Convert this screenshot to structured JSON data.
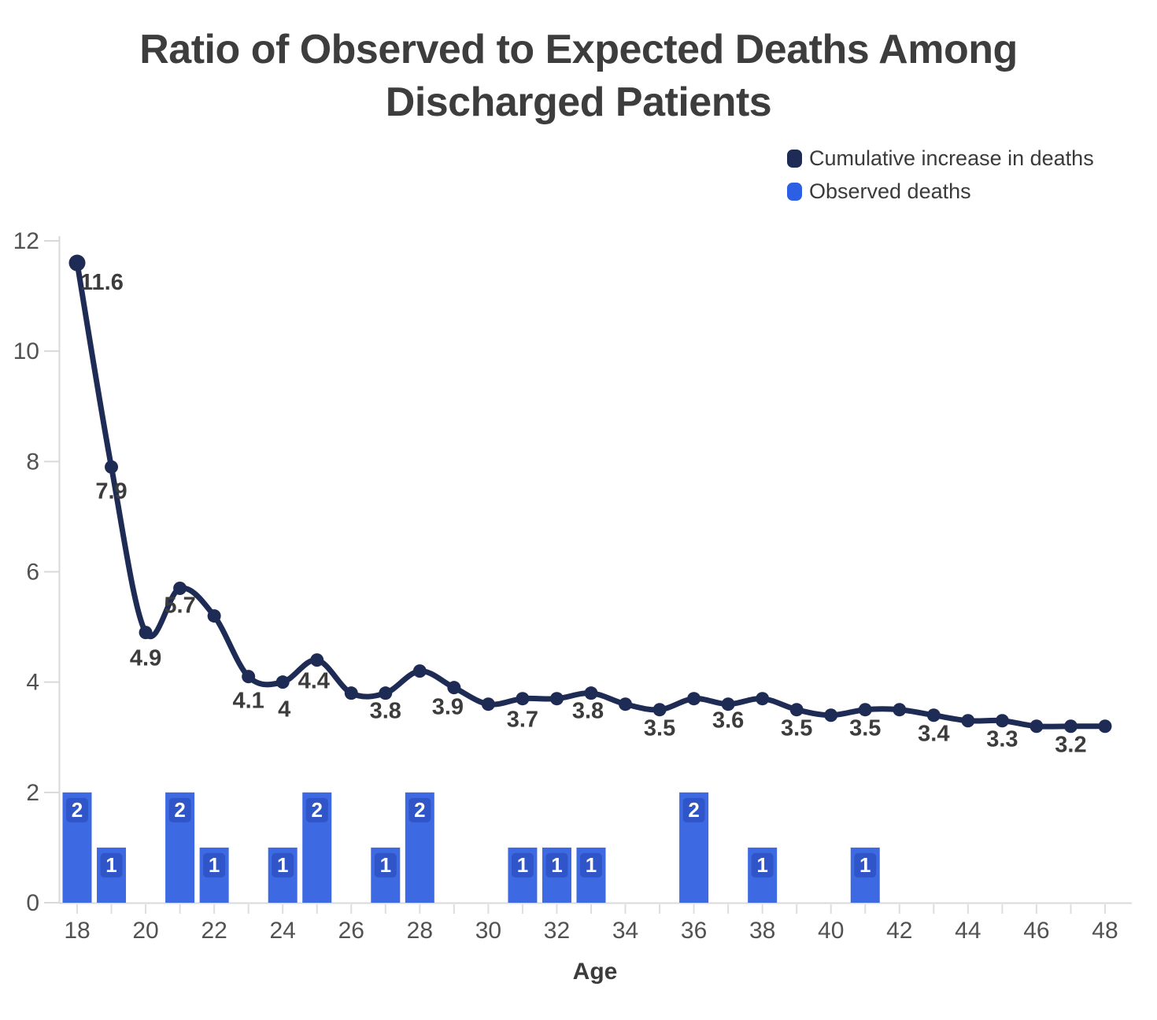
{
  "title": {
    "line1": "Ratio of Observed to Expected Deaths Among",
    "line2": "Discharged Patients"
  },
  "legend": [
    {
      "label": "Cumulative increase in deaths",
      "color": "#1e2c55"
    },
    {
      "label": "Observed deaths",
      "color": "#2d5fe4"
    }
  ],
  "chart_data": {
    "type": "line+bar",
    "title": "Ratio of Observed to Expected Deaths Among Discharged Patients",
    "xlabel": "Age",
    "ylabel": "",
    "xlim": [
      18,
      48
    ],
    "ylim": [
      0,
      12
    ],
    "grid": false,
    "legend_position": "top-right",
    "x_tick_labels": [
      "18",
      "20",
      "22",
      "24",
      "26",
      "28",
      "30",
      "32",
      "34",
      "36",
      "38",
      "40",
      "42",
      "44",
      "46",
      "48"
    ],
    "y_tick_labels": [
      "0",
      "2",
      "4",
      "6",
      "8",
      "10",
      "12"
    ],
    "y_ticks": [
      0,
      2,
      4,
      6,
      8,
      10,
      12
    ],
    "colors": {
      "line": "#1e2c55",
      "bar": "#3d6ae2",
      "bar_badge": "#2f55c9",
      "axis": "#d9d9d9",
      "minor_tick": "#dedede"
    },
    "series": [
      {
        "name": "Cumulative increase in deaths",
        "type": "line",
        "color": "#1e2c55",
        "points": [
          {
            "age": 18,
            "value": 11.6,
            "label": "11.6"
          },
          {
            "age": 19,
            "value": 7.9,
            "label": "7.9"
          },
          {
            "age": 20,
            "value": 4.9,
            "label": "4.9"
          },
          {
            "age": 21,
            "value": 5.7,
            "label": "5.7"
          },
          {
            "age": 22,
            "value": 5.2,
            "label": null
          },
          {
            "age": 23,
            "value": 4.1,
            "label": "4.1"
          },
          {
            "age": 24,
            "value": 4.0,
            "label": "4"
          },
          {
            "age": 25,
            "value": 4.4,
            "label": "4.4"
          },
          {
            "age": 26,
            "value": 3.8,
            "label": null
          },
          {
            "age": 27,
            "value": 3.8,
            "label": "3.8"
          },
          {
            "age": 28,
            "value": 4.2,
            "label": null
          },
          {
            "age": 29,
            "value": 3.9,
            "label": "3.9"
          },
          {
            "age": 30,
            "value": 3.6,
            "label": null
          },
          {
            "age": 31,
            "value": 3.7,
            "label": "3.7"
          },
          {
            "age": 32,
            "value": 3.7,
            "label": null
          },
          {
            "age": 33,
            "value": 3.8,
            "label": "3.8"
          },
          {
            "age": 34,
            "value": 3.6,
            "label": null
          },
          {
            "age": 35,
            "value": 3.5,
            "label": "3.5"
          },
          {
            "age": 36,
            "value": 3.7,
            "label": null
          },
          {
            "age": 37,
            "value": 3.6,
            "label": "3.6"
          },
          {
            "age": 38,
            "value": 3.7,
            "label": null
          },
          {
            "age": 39,
            "value": 3.5,
            "label": "3.5"
          },
          {
            "age": 40,
            "value": 3.4,
            "label": null
          },
          {
            "age": 41,
            "value": 3.5,
            "label": "3.5"
          },
          {
            "age": 42,
            "value": 3.5,
            "label": null
          },
          {
            "age": 43,
            "value": 3.4,
            "label": "3.4"
          },
          {
            "age": 44,
            "value": 3.3,
            "label": null
          },
          {
            "age": 45,
            "value": 3.3,
            "label": "3.3"
          },
          {
            "age": 46,
            "value": 3.2,
            "label": null
          },
          {
            "age": 47,
            "value": 3.2,
            "label": "3.2"
          },
          {
            "age": 48,
            "value": 3.2,
            "label": null
          }
        ]
      },
      {
        "name": "Observed deaths",
        "type": "bar",
        "color": "#3d6ae2",
        "points": [
          {
            "age": 18,
            "value": 2
          },
          {
            "age": 19,
            "value": 1
          },
          {
            "age": 21,
            "value": 2
          },
          {
            "age": 22,
            "value": 1
          },
          {
            "age": 24,
            "value": 1
          },
          {
            "age": 25,
            "value": 2
          },
          {
            "age": 27,
            "value": 1
          },
          {
            "age": 28,
            "value": 2
          },
          {
            "age": 31,
            "value": 1
          },
          {
            "age": 32,
            "value": 1
          },
          {
            "age": 33,
            "value": 1
          },
          {
            "age": 36,
            "value": 2
          },
          {
            "age": 38,
            "value": 1
          },
          {
            "age": 41,
            "value": 1
          }
        ]
      }
    ]
  }
}
